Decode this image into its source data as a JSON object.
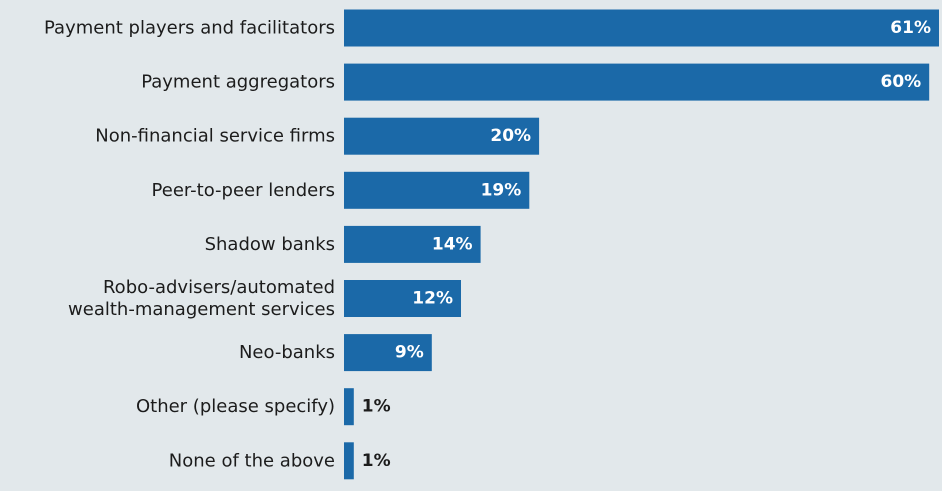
{
  "chart_data": {
    "type": "bar",
    "orientation": "horizontal",
    "categories": [
      [
        "Payment players and facilitators"
      ],
      [
        "Payment aggregators"
      ],
      [
        "Non-financial service firms"
      ],
      [
        "Peer-to-peer lenders"
      ],
      [
        "Shadow banks"
      ],
      [
        "Robo-advisers/automated",
        "wealth-management services"
      ],
      [
        "Neo-banks"
      ],
      [
        "Other (please specify)"
      ],
      [
        "None of the above"
      ]
    ],
    "values": [
      61,
      60,
      20,
      19,
      14,
      12,
      9,
      1,
      1
    ],
    "value_labels": [
      "61%",
      "60%",
      "20%",
      "19%",
      "14%",
      "12%",
      "9%",
      "1%",
      "1%"
    ],
    "xlim": [
      0,
      61
    ],
    "grid": false,
    "legend": "none",
    "bar_color": "#1b69a8",
    "background_color": "#e2e8eb"
  }
}
